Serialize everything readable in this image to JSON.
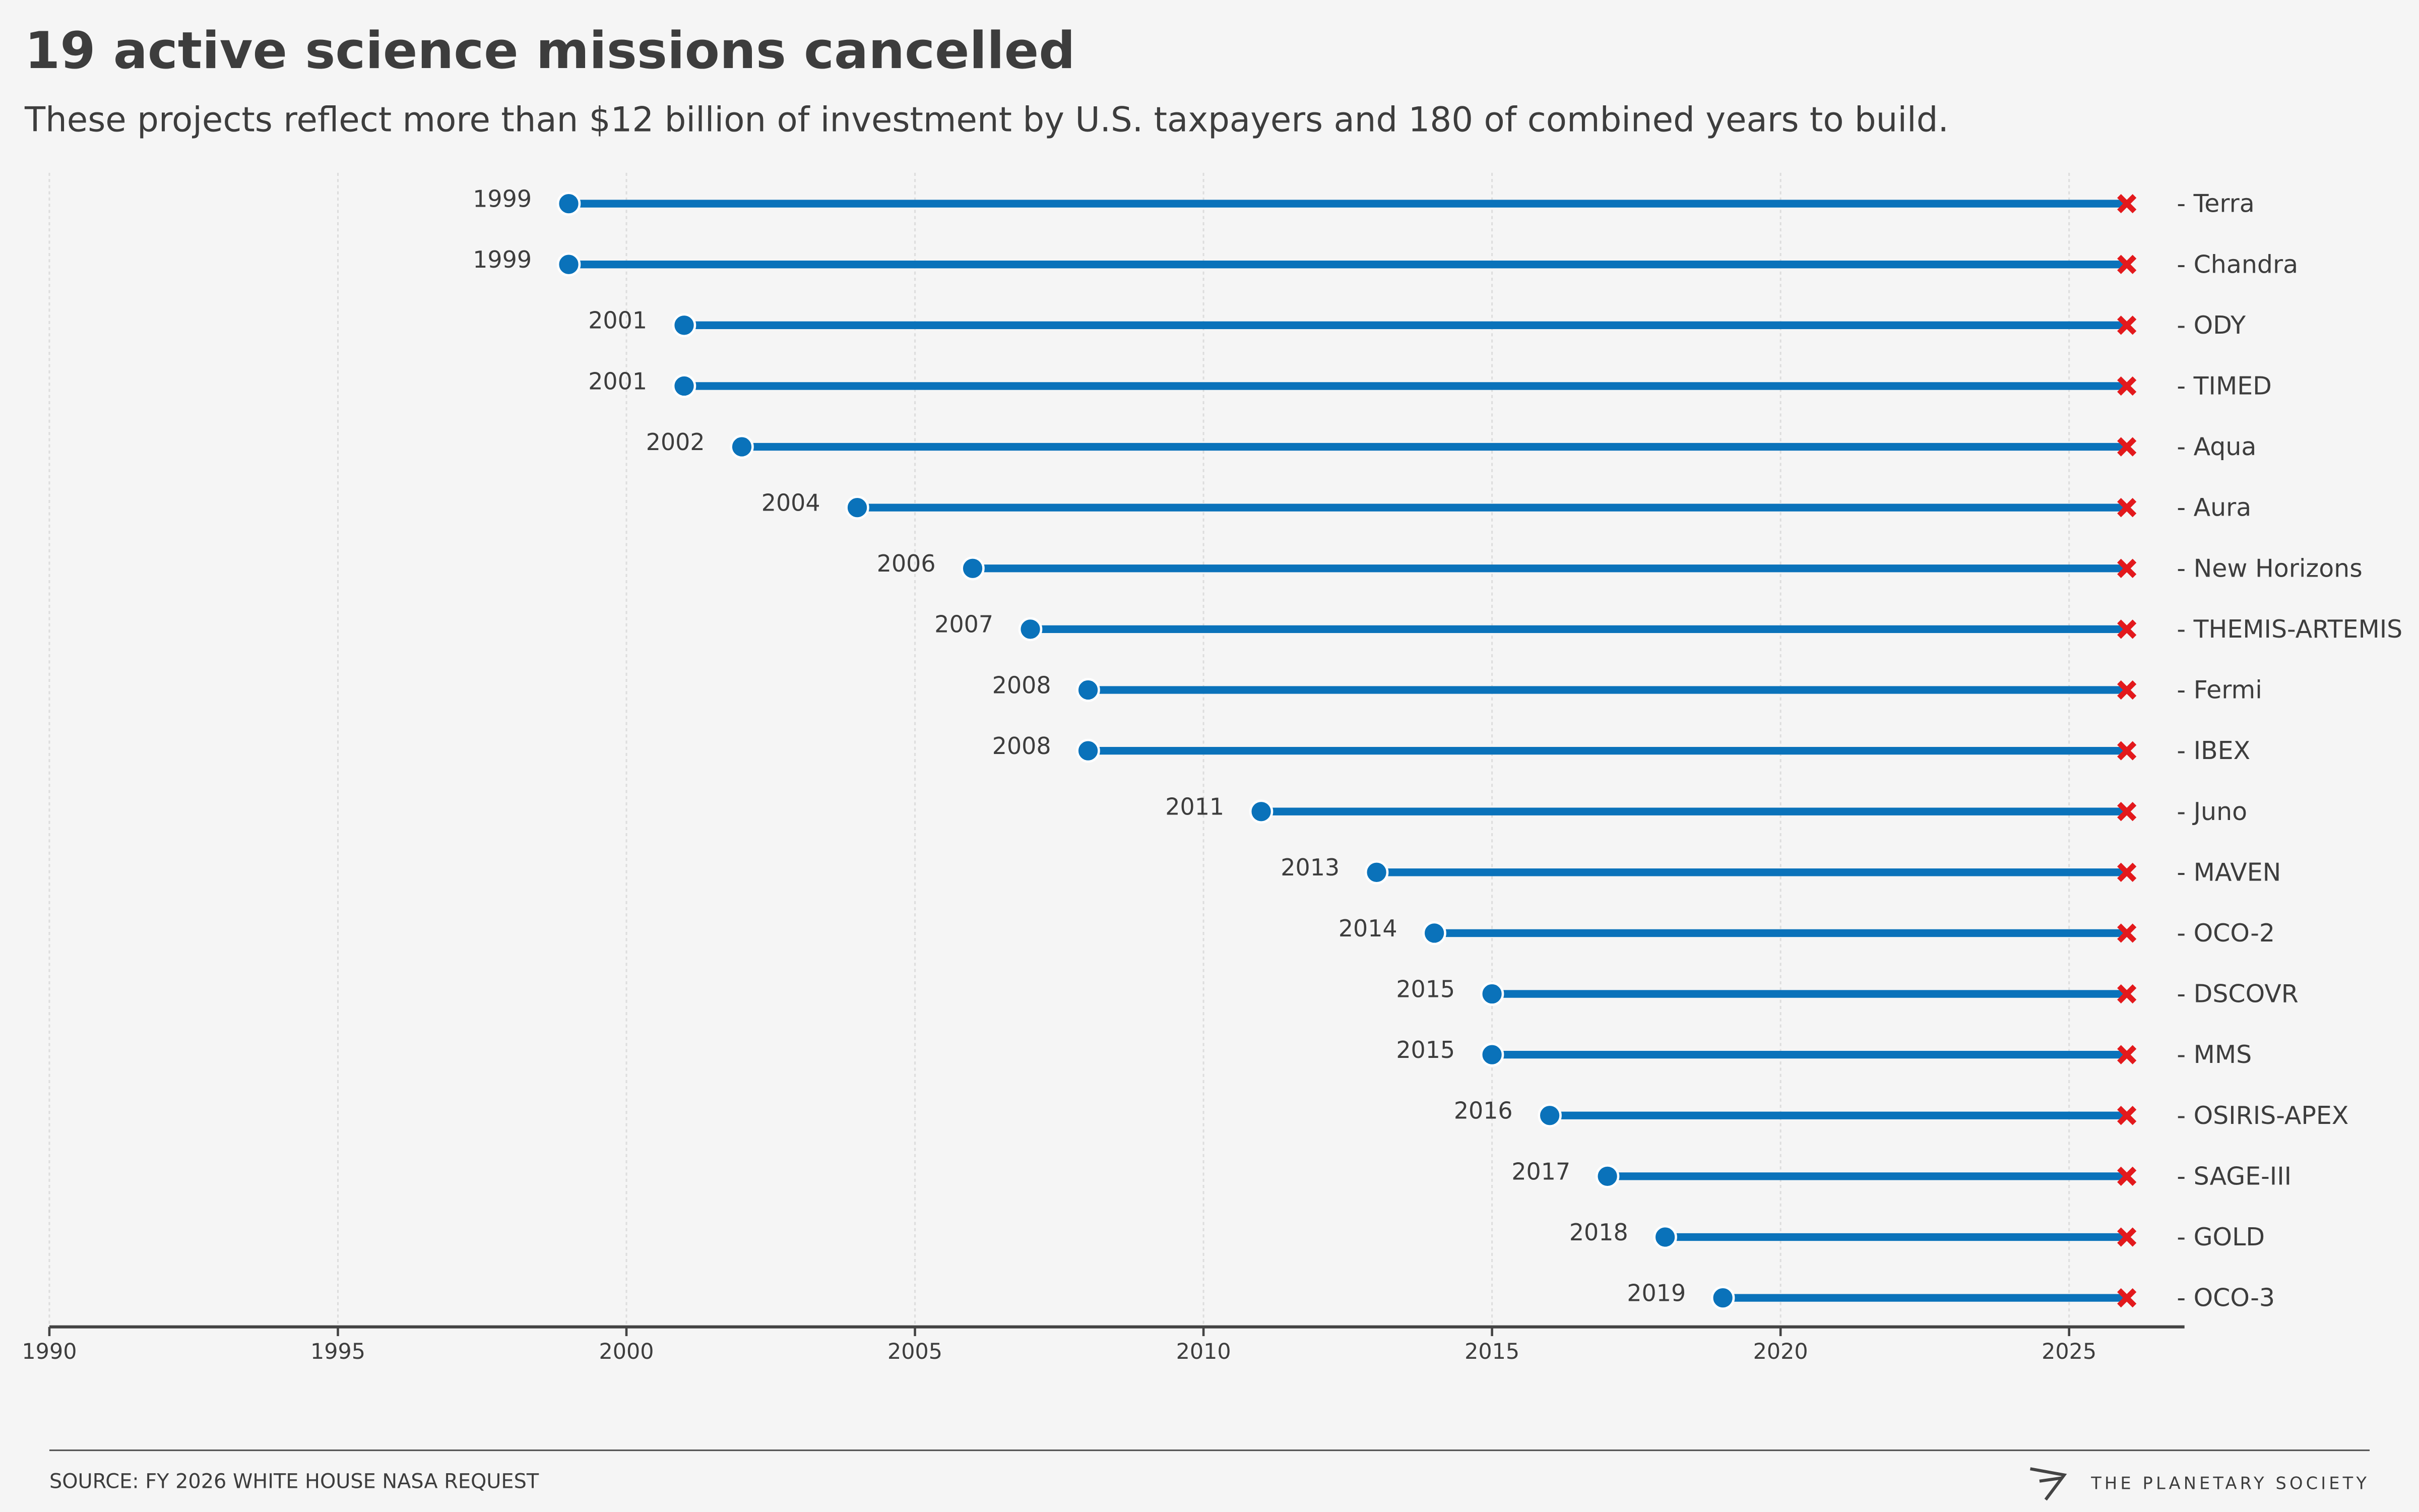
{
  "chart_data": {
    "type": "dumbbell",
    "title": "19 active science missions cancelled",
    "subtitle": "These projects reflect more than $12 billion of investment by U.S. taxpayers and 180 of combined years to build.",
    "categories": [
      "- Terra",
      "- Chandra",
      "- ODY",
      "- TIMED",
      "- Aqua",
      "- Aura",
      "- New Horizons",
      "- THEMIS-ARTEMIS",
      "- Fermi",
      "- IBEX",
      "- Juno",
      "- MAVEN",
      "- OCO-2",
      "- DSCOVR",
      "- MMS",
      "- OSIRIS-APEX",
      "- SAGE-III",
      "- GOLD",
      "- OCO-3"
    ],
    "start": [
      1999,
      1999,
      2001,
      2001,
      2002,
      2004,
      2006,
      2007,
      2008,
      2008,
      2011,
      2013,
      2014,
      2015,
      2015,
      2016,
      2017,
      2018,
      2019
    ],
    "end": [
      2026,
      2026,
      2026,
      2026,
      2026,
      2026,
      2026,
      2026,
      2026,
      2026,
      2026,
      2026,
      2026,
      2026,
      2026,
      2026,
      2026,
      2026,
      2026
    ],
    "color": "#0a72ba",
    "end_color": "#e3191c",
    "xlim": [
      1990,
      2027
    ],
    "xticks": [
      1990,
      1995,
      2000,
      2005,
      2010,
      2015,
      2020,
      2025
    ],
    "grid": true,
    "source": "SOURCE: FY 2026 WHITE HOUSE NASA REQUEST",
    "brand": "THE PLANETARY SOCIETY"
  }
}
